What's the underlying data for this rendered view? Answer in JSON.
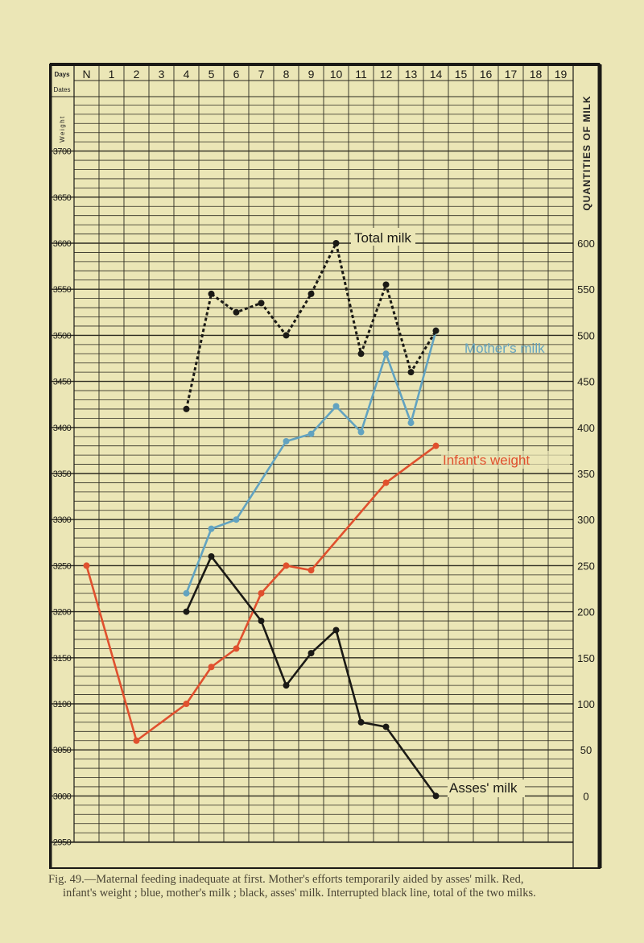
{
  "chart_data": {
    "type": "line",
    "header": {
      "days_label": "Days",
      "dates_label": "Dates",
      "weight_label": "Weight",
      "right_label": "QUANTITIES OF MILK"
    },
    "x": {
      "categories": [
        "N",
        "1",
        "2",
        "3",
        "4",
        "5",
        "6",
        "7",
        "8",
        "9",
        "10",
        "11",
        "12",
        "13",
        "14",
        "15",
        "16",
        "17",
        "18",
        "19"
      ]
    },
    "y_left": {
      "ticks": [
        3700,
        3650,
        3600,
        3550,
        3500,
        3450,
        3400,
        3350,
        3300,
        3250,
        3200,
        3150,
        3100,
        3050,
        3000,
        2950
      ],
      "range": [
        2950,
        3700
      ]
    },
    "y_right": {
      "ticks": [
        600,
        550,
        500,
        450,
        400,
        350,
        300,
        250,
        200,
        150,
        100,
        50,
        0
      ],
      "range": [
        -50,
        700
      ]
    },
    "grid": true,
    "series": [
      {
        "name": "Infant's weight",
        "axis": "left",
        "color": "#e0502e",
        "style": "solid",
        "values": [
          3250,
          null,
          3060,
          null,
          3100,
          3140,
          3160,
          3220,
          3250,
          3245,
          null,
          null,
          3340,
          null,
          3380,
          null,
          null,
          null,
          null,
          null
        ]
      },
      {
        "name": "Mother's milk",
        "axis": "right",
        "color": "#62a3c0",
        "style": "solid",
        "values": [
          null,
          null,
          null,
          null,
          220,
          290,
          300,
          null,
          385,
          393,
          423,
          395,
          480,
          405,
          505,
          null,
          null,
          null,
          null,
          null
        ]
      },
      {
        "name": "Asses' milk",
        "axis": "right",
        "color": "#1b1a16",
        "style": "solid",
        "values": [
          null,
          null,
          null,
          null,
          200,
          260,
          null,
          190,
          120,
          155,
          180,
          80,
          75,
          null,
          0,
          null,
          null,
          null,
          null,
          null
        ]
      },
      {
        "name": "Total milk",
        "axis": "right",
        "color": "#1b1a16",
        "style": "dashed",
        "values": [
          null,
          null,
          null,
          null,
          420,
          545,
          525,
          535,
          500,
          545,
          600,
          480,
          555,
          460,
          505,
          null,
          null,
          null,
          null,
          null
        ]
      }
    ]
  },
  "caption": {
    "line1": "Fig. 49.—Maternal feeding inadequate at first.   Mother's efforts temporarily aided by asses' milk.   Red,",
    "line2": "infant's weight ; blue, mother's milk ; black, asses' milk.   Interrupted black line, total of the two milks."
  }
}
